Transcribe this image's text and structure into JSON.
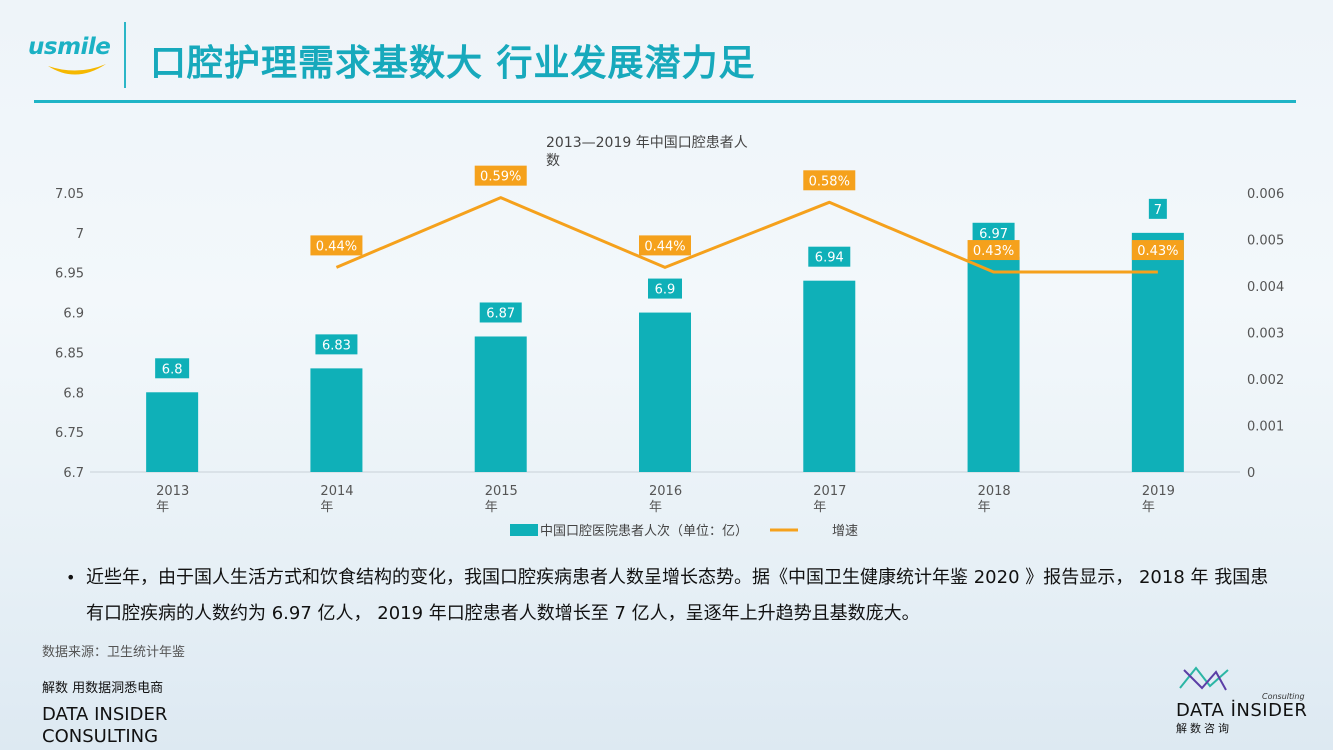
{
  "brand": {
    "logo_text": "usmile"
  },
  "title": "口腔护理需求基数大 行业发展潜力足",
  "chart_data": {
    "type": "bar",
    "title": "2013—2019 年中国口腔患者人数",
    "title_lines": [
      "2013—2019 年中国口腔患者人",
      "数"
    ],
    "categories": [
      "2013年",
      "2014年",
      "2015年",
      "2016年",
      "2017年",
      "2018年",
      "2019年"
    ],
    "category_lines": [
      [
        "2013",
        "年"
      ],
      [
        "2014",
        "年"
      ],
      [
        "2015",
        "年"
      ],
      [
        "2016",
        "年"
      ],
      [
        "2017",
        "年"
      ],
      [
        "2018",
        "年"
      ],
      [
        "2019",
        "年"
      ]
    ],
    "series": [
      {
        "name": "中国口腔医院患者人次（单位：亿）",
        "type": "bar",
        "axis": "left",
        "color": "#0fb0b8",
        "values": [
          6.8,
          6.83,
          6.87,
          6.9,
          6.94,
          6.97,
          7
        ],
        "labels": [
          "6.8",
          "6.83",
          "6.87",
          "6.9",
          "6.94",
          "6.97",
          "7"
        ]
      },
      {
        "name": "增速",
        "type": "line",
        "axis": "right",
        "color": "#f5a11c",
        "values": [
          null,
          0.0044,
          0.0059,
          0.0044,
          0.0058,
          0.0043,
          0.0043
        ],
        "labels": [
          "",
          "0.44%",
          "0.59%",
          "0.44%",
          "0.58%",
          "0.43%",
          "0.43%"
        ]
      }
    ],
    "y_left": {
      "min": 6.7,
      "max": 7.05,
      "ticks": [
        "6.7",
        "6.75",
        "6.8",
        "6.85",
        "6.9",
        "6.95",
        "7",
        "7.05"
      ]
    },
    "y_right": {
      "min": 0,
      "max": 0.006,
      "ticks": [
        "0",
        "0.001",
        "0.002",
        "0.003",
        "0.004",
        "0.005",
        "0.006"
      ]
    },
    "legend_position": "bottom-center",
    "grid": false
  },
  "bullet": "近些年，由于国人生活方式和饮食结构的变化，我国口腔疾病患者人数呈增长态势。据《中国卫生健康统计年鉴 2020 》报告显示， 2018 年 我国患有口腔疾病的人数约为 6.97 亿人， 2019 年口腔患者人数增长至 7 亿人，呈逐年上升趋势且基数庞大。",
  "bullet_marker": "•",
  "source": "数据来源：卫生统计年鉴",
  "footer": {
    "slogan": "解数 用数据洞悉电商",
    "brand_line1": "DATA INSIDER",
    "brand_line2": "CONSULTING",
    "logo_name": "DATA İNSIDER",
    "logo_sub": "解数咨询",
    "logo_tag": "Consulting"
  }
}
